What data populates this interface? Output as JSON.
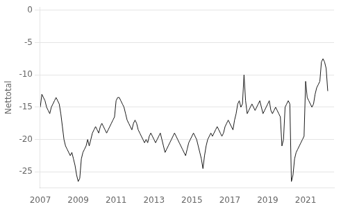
{
  "chart_data": {
    "type": "line",
    "ylabel": "Nettotal",
    "color": "#1a1a1a",
    "grid": "y",
    "xlim": [
      2007.0,
      2022.5
    ],
    "ylim": [
      -27.5,
      0.5
    ],
    "xticks": [
      2007,
      2009,
      2011,
      2013,
      2015,
      2017,
      2019,
      2021
    ],
    "yticks": [
      0,
      -5,
      -10,
      -15,
      -20,
      -25
    ],
    "x": [
      2007.0,
      2007.083,
      2007.167,
      2007.25,
      2007.333,
      2007.417,
      2007.5,
      2007.583,
      2007.667,
      2007.75,
      2007.833,
      2007.917,
      2008.0,
      2008.083,
      2008.167,
      2008.25,
      2008.333,
      2008.417,
      2008.5,
      2008.583,
      2008.667,
      2008.75,
      2008.833,
      2008.917,
      2009.0,
      2009.083,
      2009.167,
      2009.25,
      2009.333,
      2009.417,
      2009.5,
      2009.583,
      2009.667,
      2009.75,
      2009.833,
      2009.917,
      2010.0,
      2010.083,
      2010.167,
      2010.25,
      2010.333,
      2010.417,
      2010.5,
      2010.583,
      2010.667,
      2010.75,
      2010.833,
      2010.917,
      2011.0,
      2011.083,
      2011.167,
      2011.25,
      2011.333,
      2011.417,
      2011.5,
      2011.583,
      2011.667,
      2011.75,
      2011.833,
      2011.917,
      2012.0,
      2012.083,
      2012.167,
      2012.25,
      2012.333,
      2012.417,
      2012.5,
      2012.583,
      2012.667,
      2012.75,
      2012.833,
      2012.917,
      2013.0,
      2013.083,
      2013.167,
      2013.25,
      2013.333,
      2013.417,
      2013.5,
      2013.583,
      2013.667,
      2013.75,
      2013.833,
      2013.917,
      2014.0,
      2014.083,
      2014.167,
      2014.25,
      2014.333,
      2014.417,
      2014.5,
      2014.583,
      2014.667,
      2014.75,
      2014.833,
      2014.917,
      2015.0,
      2015.083,
      2015.167,
      2015.25,
      2015.333,
      2015.417,
      2015.5,
      2015.583,
      2015.667,
      2015.75,
      2015.833,
      2015.917,
      2016.0,
      2016.083,
      2016.167,
      2016.25,
      2016.333,
      2016.417,
      2016.5,
      2016.583,
      2016.667,
      2016.75,
      2016.833,
      2016.917,
      2017.0,
      2017.083,
      2017.167,
      2017.25,
      2017.333,
      2017.417,
      2017.5,
      2017.583,
      2017.667,
      2017.75,
      2017.833,
      2017.917,
      2018.0,
      2018.083,
      2018.167,
      2018.25,
      2018.333,
      2018.417,
      2018.5,
      2018.583,
      2018.667,
      2018.75,
      2018.833,
      2018.917,
      2019.0,
      2019.083,
      2019.167,
      2019.25,
      2019.333,
      2019.417,
      2019.5,
      2019.583,
      2019.667,
      2019.75,
      2019.833,
      2019.917,
      2020.0,
      2020.083,
      2020.167,
      2020.25,
      2020.333,
      2020.417,
      2020.5,
      2020.583,
      2020.667,
      2020.75,
      2020.833,
      2020.917,
      2021.0,
      2021.083,
      2021.167,
      2021.25,
      2021.333,
      2021.417,
      2021.5,
      2021.583,
      2021.667,
      2021.75,
      2021.833,
      2021.917,
      2022.0,
      2022.083,
      2022.167
    ],
    "values": [
      -15.0,
      -13.0,
      -13.5,
      -14.0,
      -15.0,
      -15.5,
      -16.0,
      -15.0,
      -14.5,
      -14.0,
      -13.5,
      -14.0,
      -14.5,
      -16.0,
      -18.0,
      -20.0,
      -21.0,
      -21.5,
      -22.0,
      -22.5,
      -22.0,
      -23.0,
      -24.0,
      -25.5,
      -26.5,
      -26.0,
      -23.0,
      -22.0,
      -21.5,
      -21.0,
      -20.0,
      -21.0,
      -20.0,
      -19.0,
      -18.5,
      -18.0,
      -18.5,
      -19.0,
      -18.0,
      -17.5,
      -18.0,
      -18.5,
      -19.0,
      -18.5,
      -18.0,
      -17.5,
      -17.0,
      -16.5,
      -14.0,
      -13.5,
      -13.5,
      -14.0,
      -14.5,
      -15.0,
      -16.0,
      -17.0,
      -17.5,
      -18.0,
      -18.5,
      -17.5,
      -17.0,
      -17.5,
      -18.5,
      -19.0,
      -19.5,
      -20.0,
      -20.5,
      -20.0,
      -20.5,
      -19.5,
      -19.0,
      -19.5,
      -20.0,
      -20.5,
      -20.0,
      -19.5,
      -19.0,
      -20.0,
      -21.0,
      -22.0,
      -21.5,
      -21.0,
      -20.5,
      -20.0,
      -19.5,
      -19.0,
      -19.5,
      -20.0,
      -20.5,
      -21.0,
      -21.5,
      -22.0,
      -22.5,
      -21.5,
      -20.5,
      -20.0,
      -19.5,
      -19.0,
      -19.5,
      -20.0,
      -21.0,
      -22.0,
      -23.0,
      -24.5,
      -22.5,
      -21.0,
      -20.0,
      -19.5,
      -19.0,
      -19.5,
      -19.0,
      -18.5,
      -18.0,
      -18.5,
      -19.0,
      -19.5,
      -19.0,
      -18.0,
      -17.5,
      -17.0,
      -17.5,
      -18.0,
      -18.5,
      -17.0,
      -16.0,
      -14.5,
      -14.0,
      -15.0,
      -14.5,
      -10.0,
      -14.0,
      -16.0,
      -15.5,
      -15.0,
      -14.5,
      -15.0,
      -15.5,
      -15.0,
      -14.5,
      -14.0,
      -15.0,
      -16.0,
      -15.5,
      -15.0,
      -14.5,
      -14.0,
      -15.5,
      -16.0,
      -15.5,
      -15.0,
      -15.5,
      -16.0,
      -16.5,
      -21.0,
      -20.0,
      -15.0,
      -14.5,
      -14.0,
      -14.5,
      -26.5,
      -25.5,
      -23.0,
      -22.0,
      -21.5,
      -21.0,
      -20.5,
      -20.0,
      -19.5,
      -11.0,
      -13.5,
      -14.0,
      -14.5,
      -15.0,
      -14.5,
      -13.0,
      -12.0,
      -11.5,
      -11.0,
      -8.0,
      -7.5,
      -8.0,
      -9.0,
      -12.5
    ]
  }
}
